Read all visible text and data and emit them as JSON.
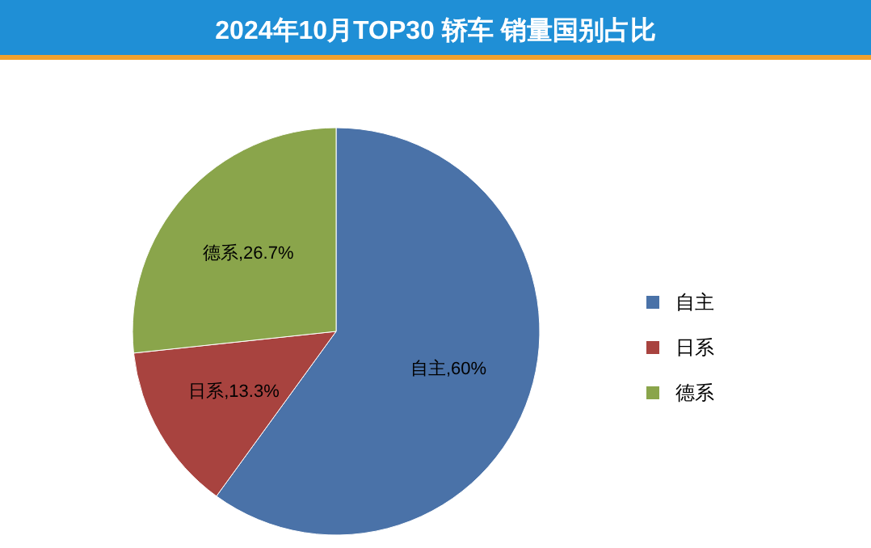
{
  "chart_data": {
    "type": "pie",
    "title": "2024年10月TOP30 轿车 销量国别占比",
    "categories": [
      "自主",
      "日系",
      "德系"
    ],
    "values": [
      60,
      13.3,
      26.7
    ],
    "colors": [
      "#4a72a8",
      "#a8433f",
      "#8aa54b"
    ],
    "value_labels": [
      "自主,60%",
      "日系,13.3%",
      "德系,26.7%"
    ],
    "legend": "right"
  }
}
